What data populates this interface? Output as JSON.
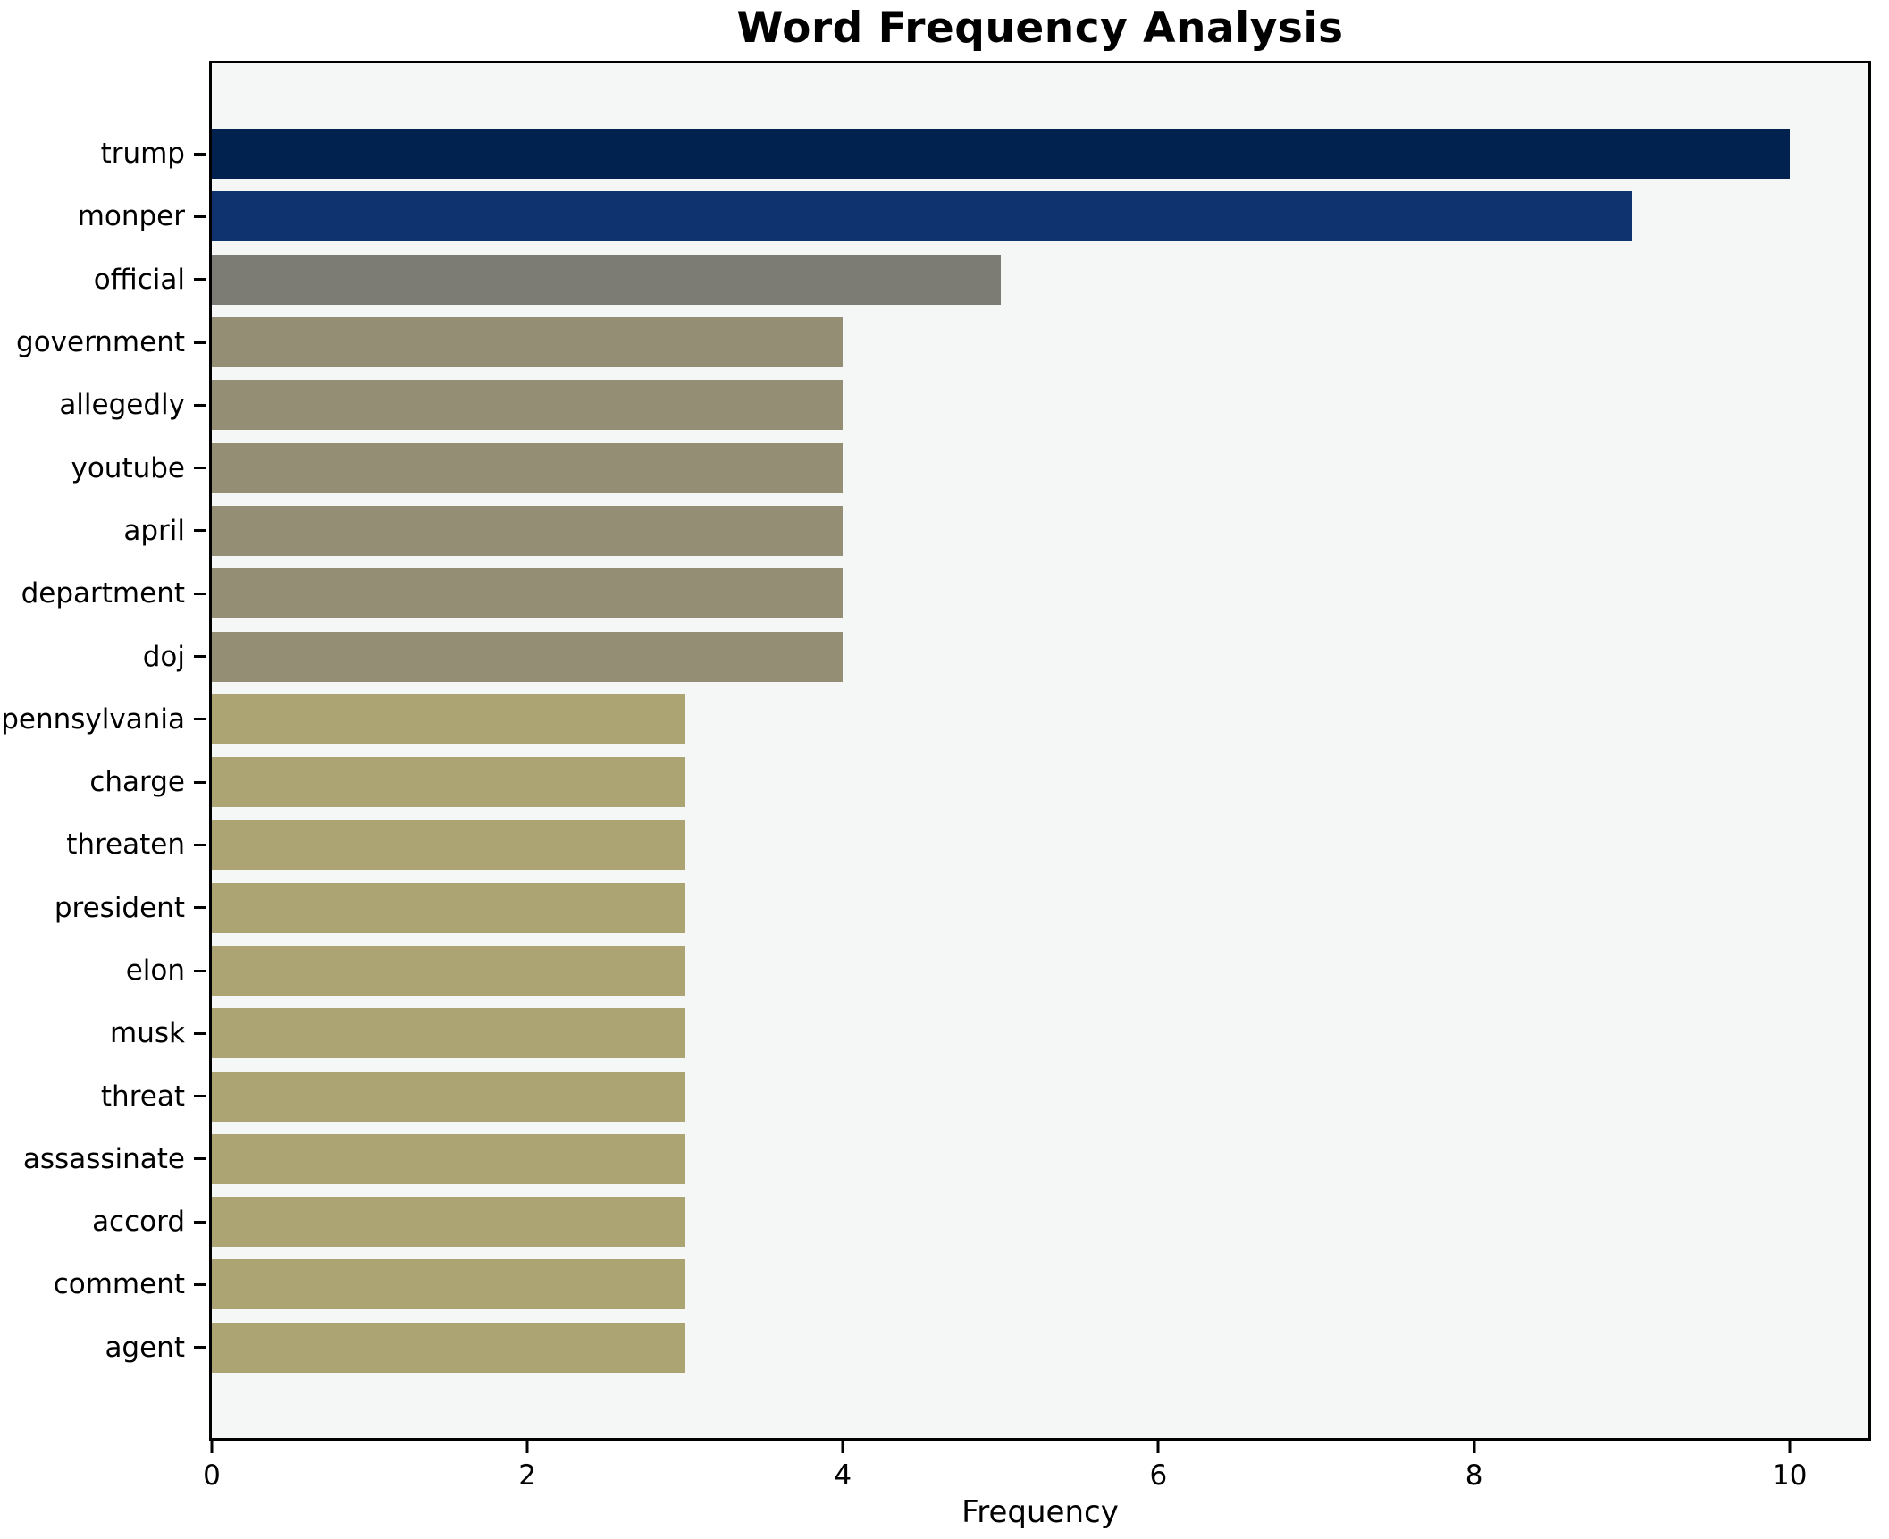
{
  "figure": {
    "background_color": "#ffffff",
    "plot_background_color": "#f5f6f6",
    "frame_color": "#000000"
  },
  "chart_data": {
    "type": "bar",
    "orientation": "horizontal",
    "title": "Word Frequency Analysis",
    "xlabel": "Frequency",
    "ylabel": "",
    "grid": false,
    "legend": null,
    "xlim": [
      0,
      10.5
    ],
    "x_ticks": [
      0,
      2,
      4,
      6,
      8,
      10
    ],
    "categories": [
      "trump",
      "monper",
      "official",
      "government",
      "allegedly",
      "youtube",
      "april",
      "department",
      "doj",
      "pennsylvania",
      "charge",
      "threaten",
      "president",
      "elon",
      "musk",
      "threat",
      "assassinate",
      "accord",
      "comment",
      "agent"
    ],
    "values": [
      10,
      9,
      5,
      4,
      4,
      4,
      4,
      4,
      4,
      3,
      3,
      3,
      3,
      3,
      3,
      3,
      3,
      3,
      3,
      3
    ],
    "bar_colors": [
      "#01224e",
      "#0e336f",
      "#7c7b74",
      "#948e75",
      "#948e75",
      "#948e75",
      "#948e75",
      "#948e75",
      "#948e75",
      "#aca472",
      "#aca472",
      "#aca472",
      "#aca472",
      "#aca472",
      "#aca472",
      "#aca472",
      "#aca472",
      "#aca472",
      "#aca472",
      "#aca472"
    ]
  }
}
